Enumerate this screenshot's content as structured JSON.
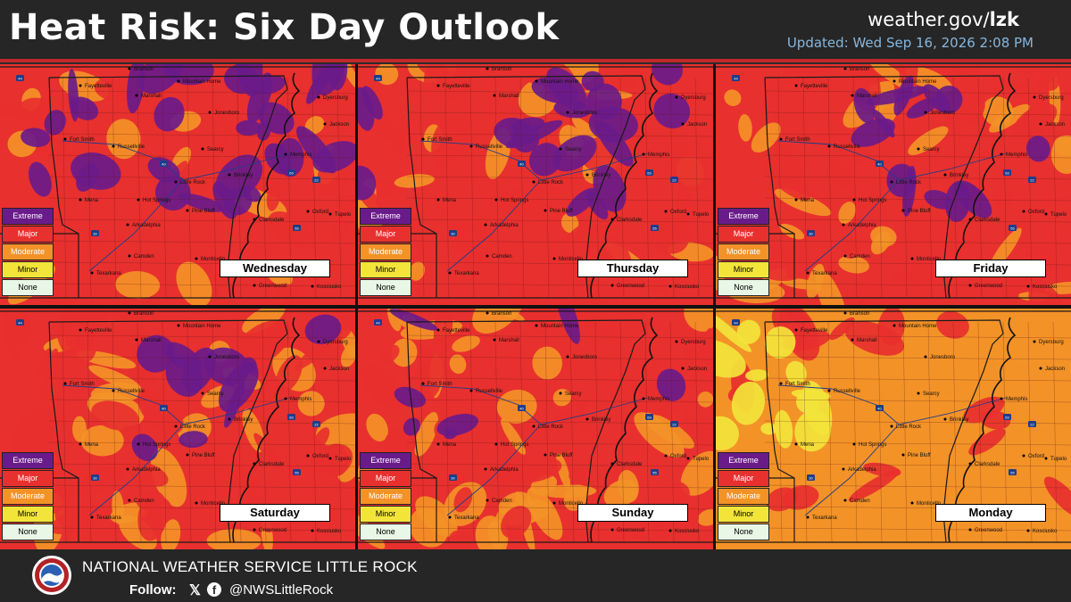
{
  "header": {
    "title": "Heat Risk: Six Day Outlook",
    "site_prefix": "weather.gov/",
    "site_office": "lzk",
    "updated": "Updated: Wed Sep 16, 2026 2:08 PM"
  },
  "legend": {
    "levels": [
      {
        "label": "Extreme",
        "color": "#6a1b8a",
        "text_color": "#ffffff"
      },
      {
        "label": "Major",
        "color": "#e8302e",
        "text_color": "#ffffff"
      },
      {
        "label": "Moderate",
        "color": "#f39227",
        "text_color": "#ffffff"
      },
      {
        "label": "Minor",
        "color": "#f3e43a",
        "text_color": "#000000"
      },
      {
        "label": "None",
        "color": "#e9f7e6",
        "text_color": "#000000"
      }
    ]
  },
  "cities": [
    "Branson",
    "Mountain Home",
    "Fayetteville",
    "Marshall",
    "Jonesboro",
    "Dyersburg",
    "Jackson",
    "Fort Smith",
    "Russellville",
    "Searcy",
    "Memphis",
    "Little Rock",
    "Brinkley",
    "Mena",
    "Hot Springs",
    "Pine Bluff",
    "Clarksdale",
    "Oxford",
    "Tupelo",
    "Arkadelphia",
    "Camden",
    "Monticello",
    "Texarkana",
    "Greenville",
    "Greenwood",
    "Kosciusko"
  ],
  "highways": [
    "44",
    "40",
    "30",
    "55",
    "69",
    "22"
  ],
  "panels": [
    {
      "day": "Wednesday",
      "base": "major",
      "mix": {
        "extreme": 0.45,
        "major": 0.35,
        "moderate": 0.2,
        "minor": 0.0
      }
    },
    {
      "day": "Thursday",
      "base": "major",
      "mix": {
        "extreme": 0.3,
        "major": 0.45,
        "moderate": 0.25,
        "minor": 0.0
      }
    },
    {
      "day": "Friday",
      "base": "major",
      "mix": {
        "extreme": 0.2,
        "major": 0.4,
        "moderate": 0.4,
        "minor": 0.0
      }
    },
    {
      "day": "Saturday",
      "base": "major",
      "mix": {
        "extreme": 0.15,
        "major": 0.45,
        "moderate": 0.4,
        "minor": 0.0
      }
    },
    {
      "day": "Sunday",
      "base": "major",
      "mix": {
        "extreme": 0.1,
        "major": 0.35,
        "moderate": 0.55,
        "minor": 0.0
      }
    },
    {
      "day": "Monday",
      "base": "moderate",
      "mix": {
        "extreme": 0.0,
        "major": 0.25,
        "moderate": 0.55,
        "minor": 0.2
      }
    }
  ],
  "footer": {
    "office": "NATIONAL WEATHER SERVICE LITTLE ROCK",
    "follow": "Follow:",
    "x_icon": "x-logo-icon",
    "fb_icon": "facebook-icon",
    "handle": "@NWSLittleRock"
  }
}
